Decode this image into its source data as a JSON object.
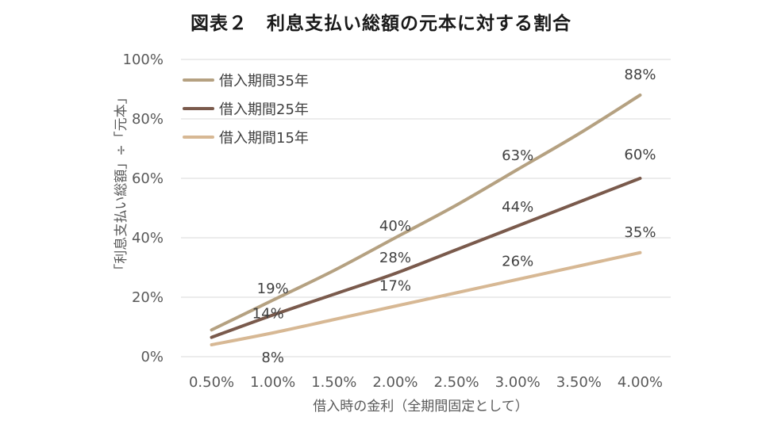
{
  "chart_data": {
    "type": "line",
    "title": "図表２　利息支払い総額の元本に対する割合",
    "xlabel": "借入時の金利（全期間固定として）",
    "ylabel": "「利息支払い総額」÷「元本」",
    "x": [
      0.5,
      1.0,
      1.5,
      2.0,
      2.5,
      3.0,
      3.5,
      4.0
    ],
    "x_tick_labels": [
      "0.50%",
      "1.00%",
      "1.50%",
      "2.00%",
      "2.50%",
      "3.00%",
      "3.50%",
      "4.00%"
    ],
    "y_tick_labels": [
      "0%",
      "20%",
      "40%",
      "60%",
      "80%",
      "100%"
    ],
    "ylim": [
      0,
      100
    ],
    "grid": true,
    "legend_position": "top-left",
    "series": [
      {
        "name": "借入期間35年",
        "color": "#b5a181",
        "values": [
          9,
          19,
          29,
          40,
          51,
          63,
          75,
          88
        ],
        "labels": [
          {
            "x": 1.0,
            "y": 19,
            "text": "19%"
          },
          {
            "x": 2.0,
            "y": 40,
            "text": "40%"
          },
          {
            "x": 3.0,
            "y": 63,
            "text": "63%"
          },
          {
            "x": 4.0,
            "y": 88,
            "text": "88%"
          }
        ]
      },
      {
        "name": "借入期間25年",
        "color": "#7a5a4c",
        "values": [
          6.5,
          14,
          21,
          28,
          36,
          44,
          52,
          60
        ],
        "labels": [
          {
            "x": 1.0,
            "y": 14,
            "text": "14%"
          },
          {
            "x": 2.0,
            "y": 28,
            "text": "28%"
          },
          {
            "x": 3.0,
            "y": 44,
            "text": "44%"
          },
          {
            "x": 4.0,
            "y": 60,
            "text": "60%"
          }
        ]
      },
      {
        "name": "借入期間15年",
        "color": "#d7b894",
        "values": [
          4,
          8,
          12.5,
          17,
          21.5,
          26,
          30.5,
          35
        ],
        "labels": [
          {
            "x": 1.0,
            "y": 8,
            "text": "8%"
          },
          {
            "x": 2.0,
            "y": 17,
            "text": "17%"
          },
          {
            "x": 3.0,
            "y": 26,
            "text": "26%"
          },
          {
            "x": 4.0,
            "y": 35,
            "text": "35%"
          }
        ]
      }
    ]
  }
}
